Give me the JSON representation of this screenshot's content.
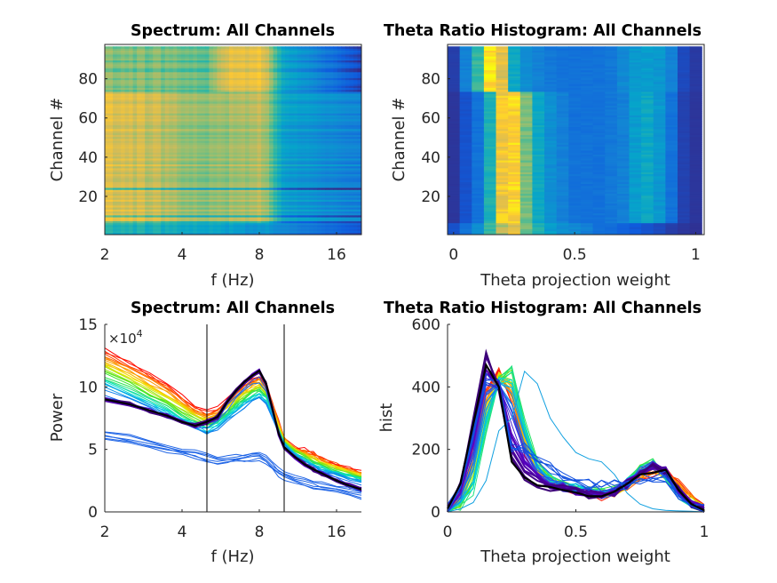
{
  "colormap_heat": [
    "#352a87",
    "#0f5cdd",
    "#1481d6",
    "#06a4ca",
    "#2eb7a4",
    "#87bf77",
    "#d1bb59",
    "#fec832",
    "#f9fb0e"
  ],
  "chart_data": [
    {
      "type": "heatmap",
      "title": "Spectrum: All Channels",
      "xlabel": "f (Hz)",
      "ylabel": "Channel #",
      "x_scale": "log",
      "xlim": [
        2,
        20
      ],
      "ylim": [
        0.5,
        97.5
      ],
      "xticks": [
        2,
        4,
        8,
        16
      ],
      "xtick_labels": [
        "2",
        "4",
        "8",
        "16"
      ],
      "yticks": [
        20,
        40,
        60,
        80
      ],
      "ytick_labels": [
        "20",
        "40",
        "60",
        "80"
      ],
      "channels": 96,
      "groups": [
        {
          "channels": [
            1,
            6
          ],
          "profile": [
            [
              2,
              0.45
            ],
            [
              4,
              0.38
            ],
            [
              8,
              0.3
            ],
            [
              12,
              0.2
            ],
            [
              20,
              0.08
            ]
          ]
        },
        {
          "channels": [
            7,
            73
          ],
          "profile": [
            [
              2,
              0.8
            ],
            [
              3,
              0.74
            ],
            [
              4,
              0.66
            ],
            [
              5,
              0.63
            ],
            [
              6,
              0.66
            ],
            [
              8,
              0.72
            ],
            [
              9,
              0.55
            ],
            [
              10,
              0.36
            ],
            [
              14,
              0.3
            ],
            [
              20,
              0.25
            ]
          ]
        },
        {
          "channels": [
            74,
            96
          ],
          "profile": [
            [
              2,
              0.62
            ],
            [
              4,
              0.58
            ],
            [
              5,
              0.55
            ],
            [
              6,
              0.78
            ],
            [
              8,
              0.82
            ],
            [
              9,
              0.6
            ],
            [
              10,
              0.36
            ],
            [
              14,
              0.22
            ],
            [
              20,
              0.05
            ]
          ]
        }
      ],
      "dark_rows": [
        7,
        10,
        24
      ]
    },
    {
      "type": "heatmap",
      "title": "Theta Ratio Histogram: All Channels",
      "xlabel": "Theta projection weight",
      "ylabel": "Channel #",
      "xlim": [
        -0.025,
        1.035
      ],
      "ylim": [
        0.5,
        97.5
      ],
      "xticks": [
        0,
        0.5,
        1
      ],
      "xtick_labels": [
        "0",
        "0.5",
        "1"
      ],
      "yticks": [
        20,
        40,
        60,
        80
      ],
      "ytick_labels": [
        "20",
        "40",
        "60",
        "80"
      ],
      "bin_centers": [
        0,
        0.05,
        0.1,
        0.15,
        0.2,
        0.25,
        0.3,
        0.35,
        0.4,
        0.45,
        0.5,
        0.55,
        0.6,
        0.65,
        0.7,
        0.75,
        0.8,
        0.85,
        0.9,
        0.95,
        1
      ],
      "groups": [
        {
          "channels": [
            1,
            6
          ],
          "values": [
            0.1,
            0.2,
            0.3,
            0.5,
            0.7,
            0.8,
            0.6,
            0.45,
            0.35,
            0.3,
            0.28,
            0.25,
            0.2,
            0.18,
            0.15,
            0.12,
            0.1,
            0.08,
            0.05,
            0.03,
            0.02
          ]
        },
        {
          "channels": [
            7,
            73
          ],
          "values": [
            0.03,
            0.1,
            0.2,
            0.45,
            0.85,
            0.9,
            0.6,
            0.4,
            0.3,
            0.25,
            0.2,
            0.2,
            0.2,
            0.22,
            0.25,
            0.35,
            0.4,
            0.33,
            0.2,
            0.06,
            0.03
          ]
        },
        {
          "channels": [
            74,
            96
          ],
          "values": [
            0.05,
            0.25,
            0.5,
            0.95,
            0.8,
            0.4,
            0.3,
            0.25,
            0.22,
            0.2,
            0.2,
            0.2,
            0.2,
            0.22,
            0.28,
            0.33,
            0.35,
            0.33,
            0.25,
            0.08,
            0.04
          ]
        }
      ]
    },
    {
      "type": "line",
      "title": "Spectrum: All Channels",
      "xlabel": "f (Hz)",
      "ylabel": "Power",
      "y_exponent_label": "×10",
      "y_exponent": "4",
      "x_scale": "log",
      "xlim": [
        2,
        20
      ],
      "ylim": [
        0,
        15
      ],
      "xticks": [
        2,
        4,
        8,
        16
      ],
      "xtick_labels": [
        "2",
        "4",
        "8",
        "16"
      ],
      "yticks": [
        0,
        5,
        10,
        15
      ],
      "ytick_labels": [
        "0",
        "5",
        "10",
        "15"
      ],
      "vertical_lines_x": [
        5,
        10
      ],
      "x": [
        2,
        2.5,
        3,
        3.5,
        4,
        4.5,
        5,
        5.5,
        6,
        6.5,
        7,
        7.5,
        8,
        8.5,
        9,
        9.5,
        10,
        11,
        12,
        13,
        14,
        16,
        18,
        20
      ],
      "series_envelope": {
        "highest": {
          "color": "#ff0000",
          "y": [
            13,
            12,
            11,
            10.2,
            9.3,
            8.4,
            8.0,
            8.3,
            9.0,
            9.6,
            10.2,
            10.6,
            10.9,
            10.3,
            8.8,
            7.3,
            6.0,
            5.2,
            5.0,
            4.7,
            4.3,
            3.9,
            3.5,
            3.2
          ]
        },
        "lowest_of_band": {
          "color": "#00c8ff",
          "y": [
            9.8,
            9.0,
            8.3,
            7.6,
            7.0,
            6.6,
            6.3,
            6.6,
            7.3,
            7.9,
            8.4,
            8.8,
            9.0,
            8.6,
            7.4,
            6.2,
            5.3,
            4.5,
            4.0,
            3.6,
            3.3,
            2.9,
            2.6,
            2.5
          ]
        },
        "darkest": {
          "color": "#000000",
          "y": [
            9.0,
            8.6,
            8.1,
            7.7,
            7.2,
            6.9,
            7.2,
            7.6,
            8.8,
            9.7,
            10.4,
            10.9,
            11.3,
            10.3,
            8.2,
            6.3,
            5.2,
            4.4,
            3.8,
            3.4,
            3.1,
            2.5,
            2.1,
            1.8
          ]
        },
        "low_channels": {
          "color": "#1e64e6",
          "y": [
            6.1,
            5.8,
            5.4,
            5.1,
            4.8,
            4.6,
            4.3,
            4.1,
            4.2,
            4.3,
            4.3,
            4.4,
            4.5,
            4.2,
            3.7,
            3.2,
            2.9,
            2.6,
            2.4,
            2.2,
            2.0,
            1.8,
            1.6,
            1.4
          ]
        }
      }
    },
    {
      "type": "line",
      "title": "Theta Ratio Histogram: All Channels",
      "xlabel": "Theta projection weight",
      "ylabel": "hist",
      "xlim": [
        0,
        1
      ],
      "ylim": [
        0,
        600
      ],
      "xticks": [
        0,
        0.5,
        1
      ],
      "xtick_labels": [
        "0",
        "0.5",
        "1"
      ],
      "yticks": [
        0,
        200,
        400,
        600
      ],
      "ytick_labels": [
        "0",
        "200",
        "400",
        "600"
      ],
      "x": [
        0,
        0.05,
        0.1,
        0.15,
        0.2,
        0.25,
        0.3,
        0.35,
        0.4,
        0.45,
        0.5,
        0.55,
        0.6,
        0.65,
        0.7,
        0.75,
        0.8,
        0.85,
        0.9,
        0.95,
        1
      ],
      "series_envelope": {
        "red": {
          "color": "#ff2000",
          "y": [
            5,
            50,
            230,
            400,
            450,
            350,
            190,
            120,
            95,
            80,
            65,
            55,
            50,
            60,
            80,
            110,
            125,
            130,
            100,
            50,
            10
          ]
        },
        "green": {
          "color": "#30e040",
          "y": [
            3,
            15,
            60,
            260,
            420,
            465,
            290,
            160,
            110,
            90,
            80,
            70,
            62,
            70,
            95,
            140,
            165,
            110,
            55,
            20,
            5
          ]
        },
        "purple": {
          "color": "#6a00b0",
          "y": [
            10,
            95,
            290,
            505,
            400,
            170,
            115,
            90,
            80,
            72,
            65,
            55,
            52,
            62,
            90,
            120,
            140,
            135,
            80,
            30,
            8
          ]
        },
        "black": {
          "color": "#000000",
          "y": [
            10,
            90,
            280,
            470,
            400,
            160,
            110,
            85,
            80,
            70,
            62,
            50,
            50,
            65,
            90,
            120,
            125,
            135,
            70,
            25,
            5
          ]
        },
        "outlier_blue": {
          "color": "#10a0e0",
          "y": [
            0,
            10,
            30,
            100,
            260,
            300,
            450,
            410,
            300,
            240,
            190,
            170,
            160,
            120,
            60,
            25,
            10,
            5,
            3,
            2,
            0
          ]
        }
      }
    }
  ]
}
